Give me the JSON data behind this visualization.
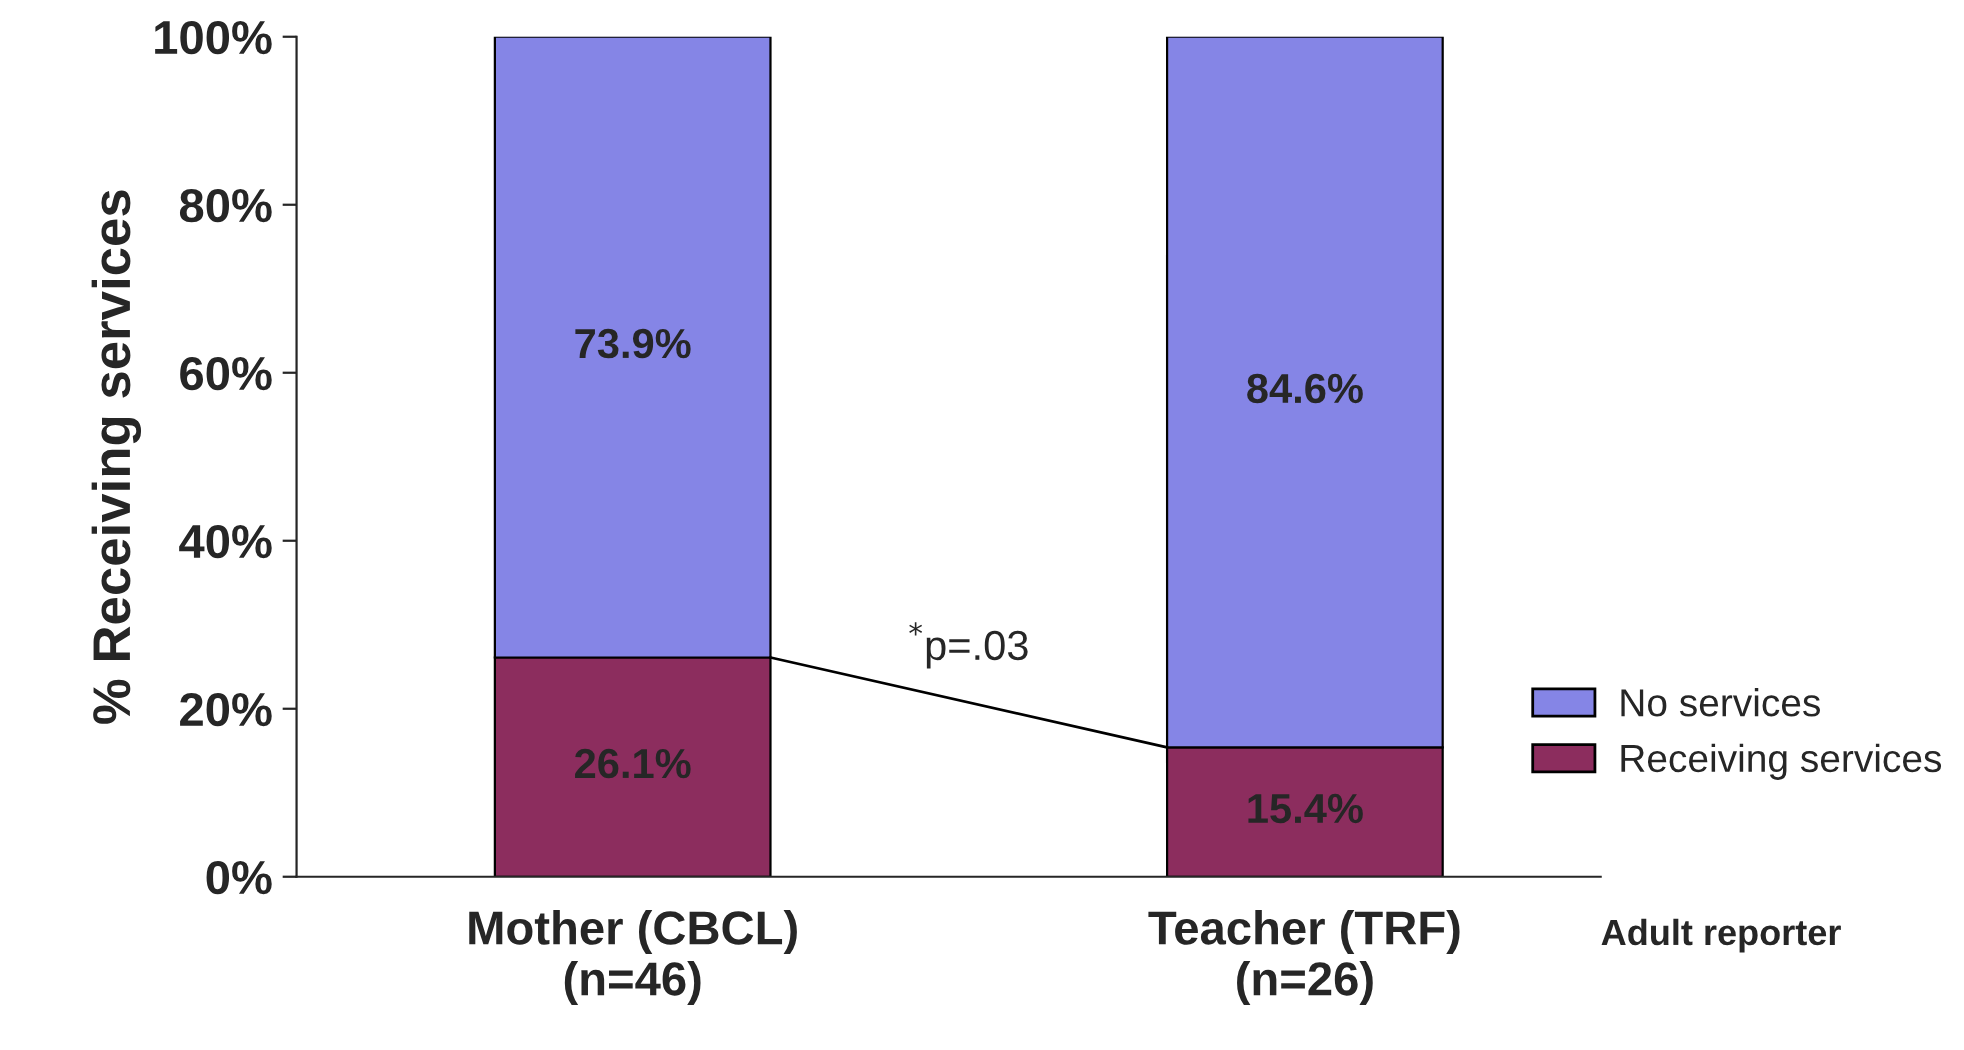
{
  "chart_data": {
    "type": "bar",
    "stacked": true,
    "ylabel": "% Receiving services",
    "xlabel": "Adult reporter",
    "categories": [
      "Mother (CBCL)\n(n=46)",
      "Teacher (TRF)\n(n=26)"
    ],
    "series": [
      {
        "name": "Receiving services",
        "color": "#8c2d5e",
        "values": [
          26.1,
          15.4
        ],
        "value_labels": [
          "26.1%",
          "15.4%"
        ]
      },
      {
        "name": "No services",
        "color": "#8585e6",
        "values": [
          73.9,
          84.6
        ],
        "value_labels": [
          "73.9%",
          "84.6%"
        ]
      }
    ],
    "ylim": [
      0,
      100
    ],
    "yticks": [
      {
        "value": 0,
        "label": "0%"
      },
      {
        "value": 20,
        "label": "20%"
      },
      {
        "value": 40,
        "label": "40%"
      },
      {
        "value": 60,
        "label": "60%"
      },
      {
        "value": 80,
        "label": "80%"
      },
      {
        "value": 100,
        "label": "100%"
      }
    ],
    "annotations": [
      "$^{*}$p=.03"
    ],
    "legend": "right",
    "grid": false
  }
}
